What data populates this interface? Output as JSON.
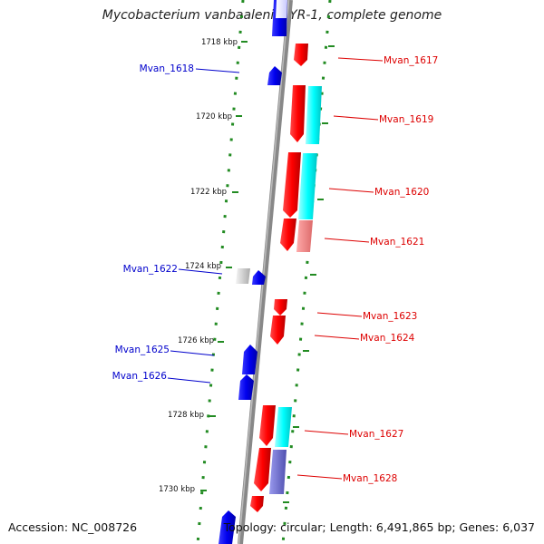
{
  "title": "Mycobacterium vanbaalenii PYR-1, complete genome",
  "footer": {
    "accession": "Accession: NC_008726",
    "topology": "Topology: circular; Length: 6,491,865 bp; Genes: 6,037"
  },
  "ticks": [
    "1718 kbp",
    "1720 kbp",
    "1722 kbp",
    "1724 kbp",
    "1726 kbp",
    "1728 kbp",
    "1730 kbp"
  ],
  "genes": [
    {
      "label": "Mvan_1617",
      "strand": "plus",
      "color": "#dd0000"
    },
    {
      "label": "Mvan_1618",
      "strand": "minus",
      "color": "#0000cc"
    },
    {
      "label": "Mvan_1619",
      "strand": "plus",
      "color": "#dd0000"
    },
    {
      "label": "Mvan_1620",
      "strand": "plus",
      "color": "#dd0000"
    },
    {
      "label": "Mvan_1621",
      "strand": "plus",
      "color": "#dd0000"
    },
    {
      "label": "Mvan_1622",
      "strand": "minus",
      "color": "#0000cc"
    },
    {
      "label": "Mvan_1623",
      "strand": "plus",
      "color": "#dd0000"
    },
    {
      "label": "Mvan_1624",
      "strand": "plus",
      "color": "#dd0000"
    },
    {
      "label": "Mvan_1625",
      "strand": "minus",
      "color": "#0000cc"
    },
    {
      "label": "Mvan_1626",
      "strand": "minus",
      "color": "#0000cc"
    },
    {
      "label": "Mvan_1627",
      "strand": "plus",
      "color": "#dd0000"
    },
    {
      "label": "Mvan_1628",
      "strand": "plus",
      "color": "#dd0000"
    }
  ],
  "colors": {
    "plus_strand": "#dd0000",
    "minus_strand": "#0000cc",
    "backbone": "#888888",
    "tick_marks": "#228b22",
    "cds_feature": "#00e5e5",
    "gray_feature": "#c8c8c8",
    "pink_feature": "#e88080",
    "purple_feature": "#6e6ecf"
  }
}
